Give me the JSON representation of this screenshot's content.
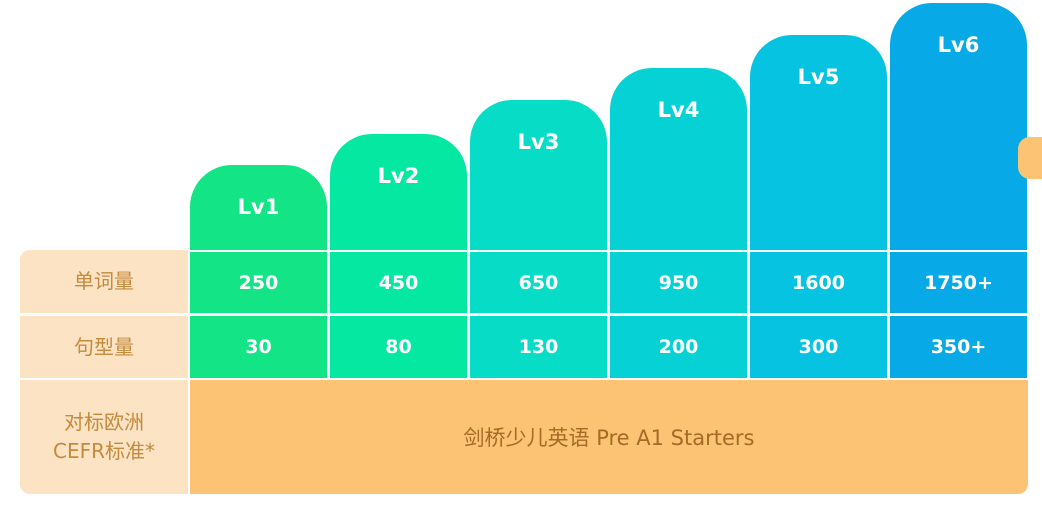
{
  "levels": [
    {
      "label": "Lv1",
      "color": "#13e486",
      "words": "250",
      "patterns": "30"
    },
    {
      "label": "Lv2",
      "color": "#05e8a1",
      "words": "450",
      "patterns": "80"
    },
    {
      "label": "Lv3",
      "color": "#07dcc7",
      "words": "650",
      "patterns": "130"
    },
    {
      "label": "Lv4",
      "color": "#06d2d6",
      "words": "950",
      "patterns": "200"
    },
    {
      "label": "Lv5",
      "color": "#06c3e1",
      "words": "1600",
      "patterns": "300"
    },
    {
      "label": "Lv6",
      "color": "#07a9e6",
      "words": "1750+",
      "patterns": "350+"
    }
  ],
  "rows": {
    "words_label": "单词量",
    "patterns_label": "句型量",
    "cefr_label_line1": "对标欧洲",
    "cefr_label_line2": "CEFR标准*"
  },
  "cefr_band": "剑桥少儿英语 Pre A1 Starters",
  "colors": {
    "header_bg": "#fbe3c4",
    "header_text": "#c58a3c",
    "band_bg": "#fbc373",
    "band_text": "#a56a26"
  }
}
